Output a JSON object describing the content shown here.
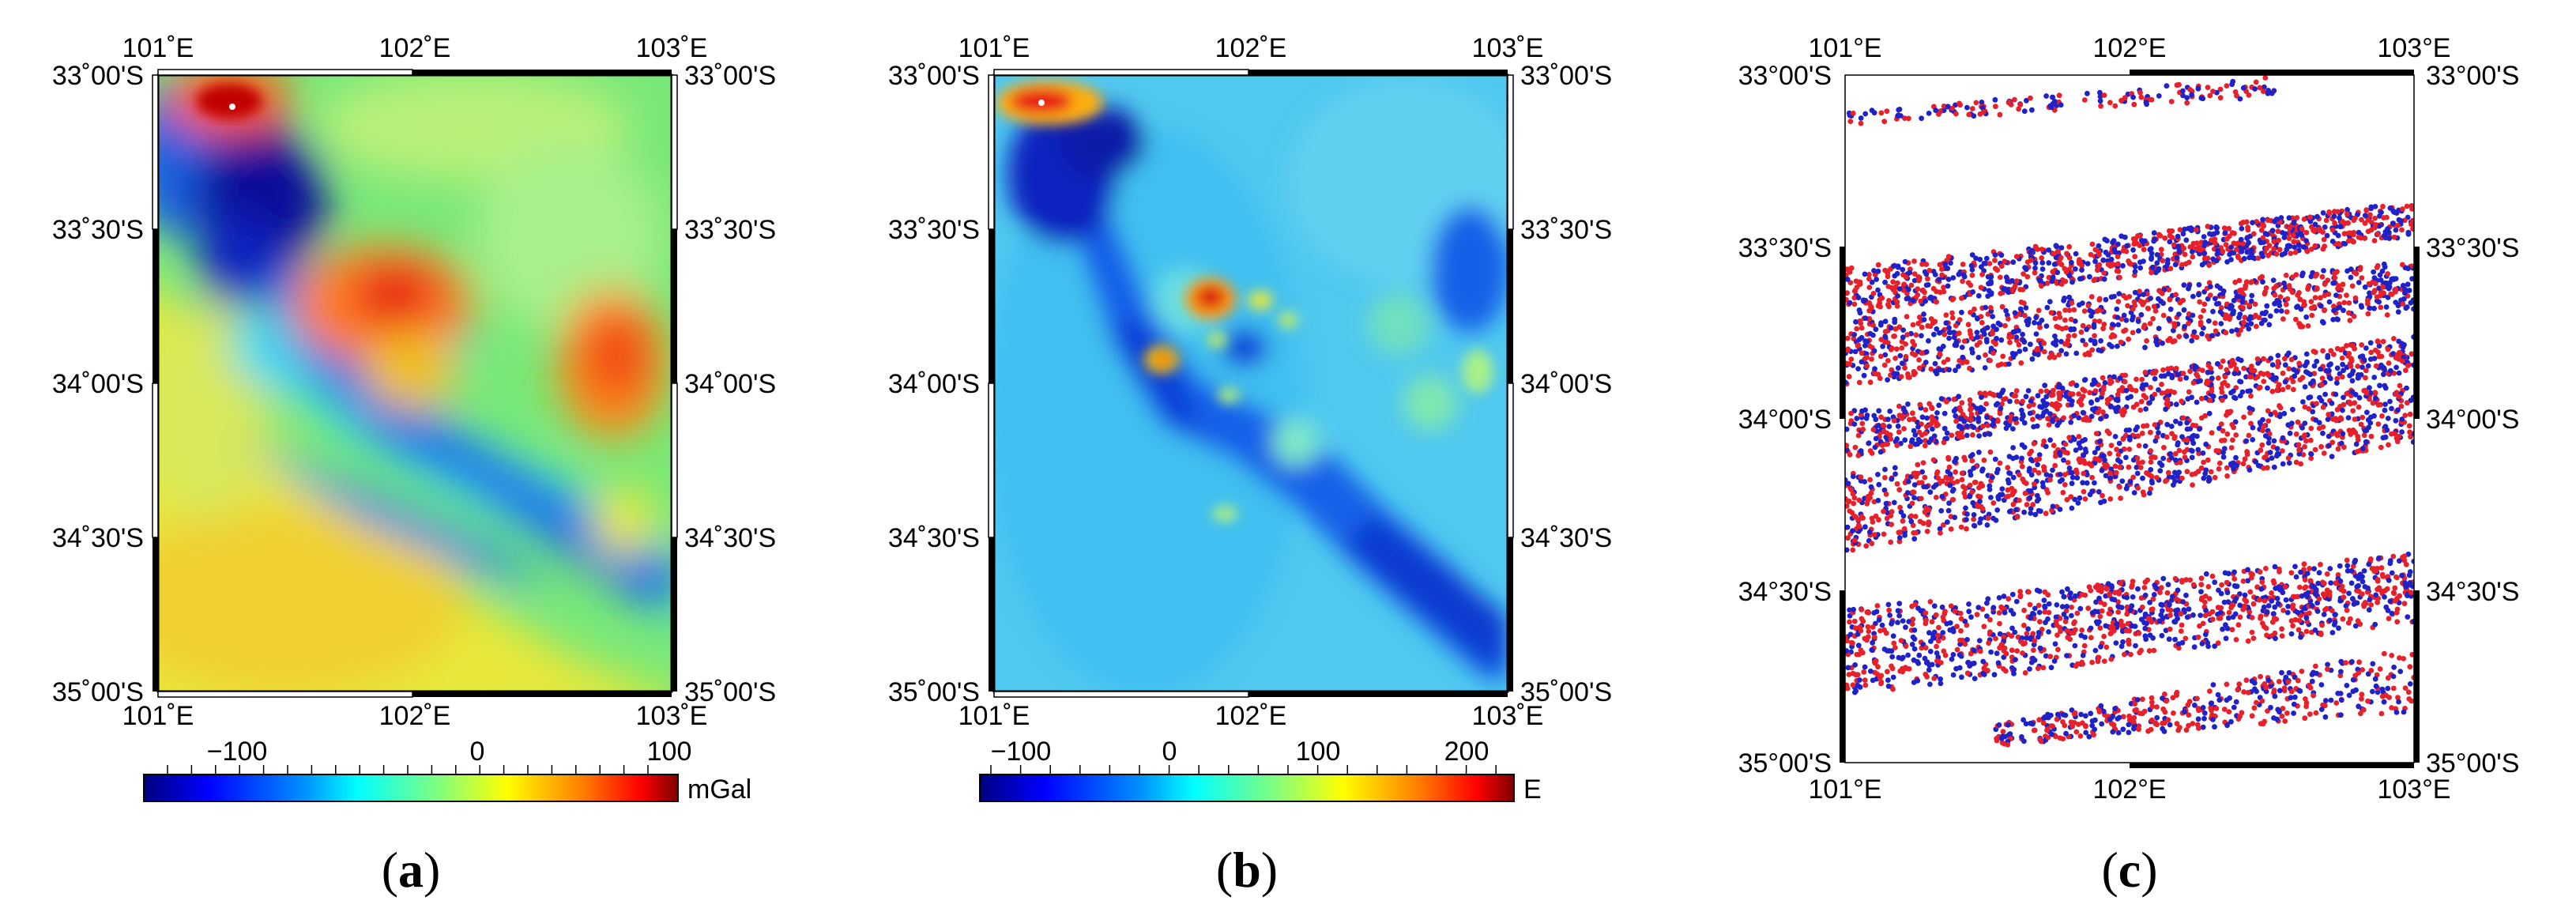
{
  "panels": [
    {
      "id": "a",
      "caption_open": "(",
      "caption_letter": "a",
      "caption_close": ")",
      "top_lon_labels": [
        "101˚E",
        "102˚E",
        "103˚E"
      ],
      "bottom_lon_labels": [
        "101˚E",
        "102˚E",
        "103˚E"
      ],
      "left_lat_labels": [
        "33˚00'S",
        "33˚30'S",
        "34˚00'S",
        "34˚30'S",
        "35˚00'S"
      ],
      "right_lat_labels": [
        "33˚00'S",
        "33˚30'S",
        "34˚00'S",
        "34˚30'S",
        "35˚00'S"
      ],
      "colorbar": {
        "ticks": [
          "−100",
          "0",
          "100"
        ],
        "unit": "mGal",
        "range": [
          -140,
          100
        ]
      }
    },
    {
      "id": "b",
      "caption_open": "(",
      "caption_letter": "b",
      "caption_close": ")",
      "top_lon_labels": [
        "101˚E",
        "102˚E",
        "103˚E"
      ],
      "bottom_lon_labels": [
        "101˚E",
        "102˚E",
        "103˚E"
      ],
      "left_lat_labels": [
        "33˚00'S",
        "33˚30'S",
        "34˚00'S",
        "34˚30'S",
        "35˚00'S"
      ],
      "right_lat_labels": [
        "33˚00'S",
        "33˚30'S",
        "34˚00'S",
        "34˚30'S",
        "35˚00'S"
      ],
      "colorbar": {
        "ticks": [
          "−100",
          "0",
          "100",
          "200"
        ],
        "unit": "E",
        "range": [
          -130,
          230
        ]
      }
    },
    {
      "id": "c",
      "caption_open": "(",
      "caption_letter": "c",
      "caption_close": ")",
      "top_lon_labels": [
        "101°E",
        "102°E",
        "103°E"
      ],
      "bottom_lon_labels": [
        "101°E",
        "102°E",
        "103°E"
      ],
      "left_lat_labels": [
        "33°00'S",
        "33°30'S",
        "34°00'S",
        "34°30'S",
        "35°00'S"
      ],
      "right_lat_labels": [
        "33°00'S",
        "33°30'S",
        "34°00'S",
        "34°30'S",
        "35°00'S"
      ],
      "point_colors": [
        "#e8202a",
        "#1e22c8"
      ]
    }
  ],
  "colormap": [
    "#00007f",
    "#0000ff",
    "#007fff",
    "#00ffff",
    "#7fff7f",
    "#ffff00",
    "#ff7f00",
    "#ff0000",
    "#7f0000"
  ]
}
